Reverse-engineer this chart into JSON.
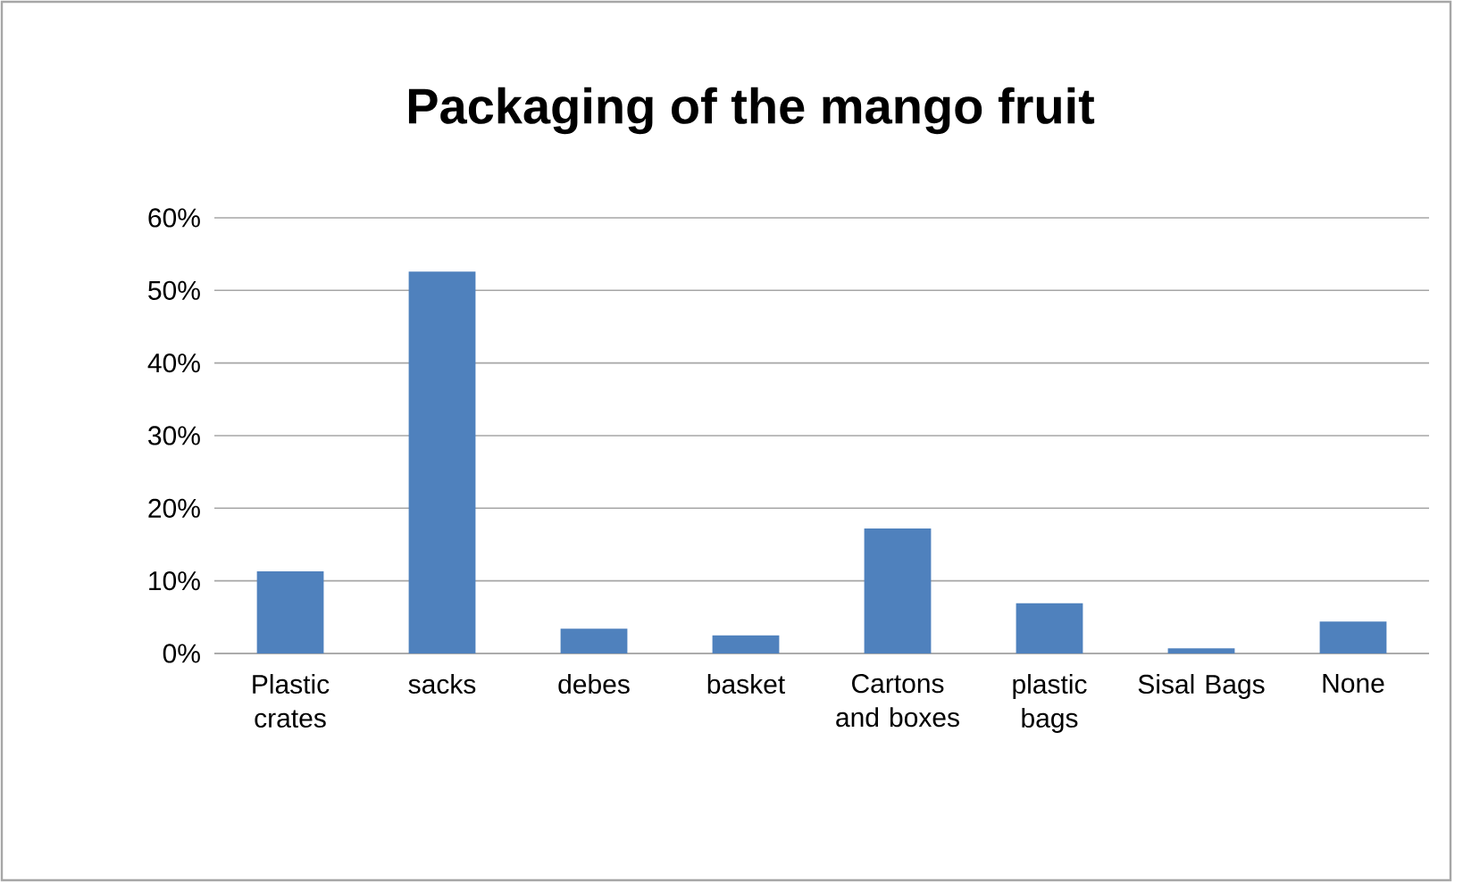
{
  "chart_data": {
    "type": "bar",
    "title": "Packaging of the mango fruit",
    "categories": [
      "Plastic crates",
      "sacks",
      "debes",
      "basket",
      "Cartons and boxes",
      "plastic bags",
      "Sisal Bags",
      "None"
    ],
    "values": [
      11.3,
      52.6,
      3.4,
      2.5,
      17.2,
      6.9,
      0.7,
      4.4
    ],
    "color": "#4f81bd",
    "ylim": [
      0,
      60
    ],
    "yticks": [
      {
        "value": 0,
        "label": "0%"
      },
      {
        "value": 10,
        "label": "10%"
      },
      {
        "value": 20,
        "label": "20%"
      },
      {
        "value": 30,
        "label": "30%"
      },
      {
        "value": 40,
        "label": "40%"
      },
      {
        "value": 50,
        "label": "50%"
      },
      {
        "value": 60,
        "label": "60%"
      }
    ],
    "grid": "y"
  }
}
